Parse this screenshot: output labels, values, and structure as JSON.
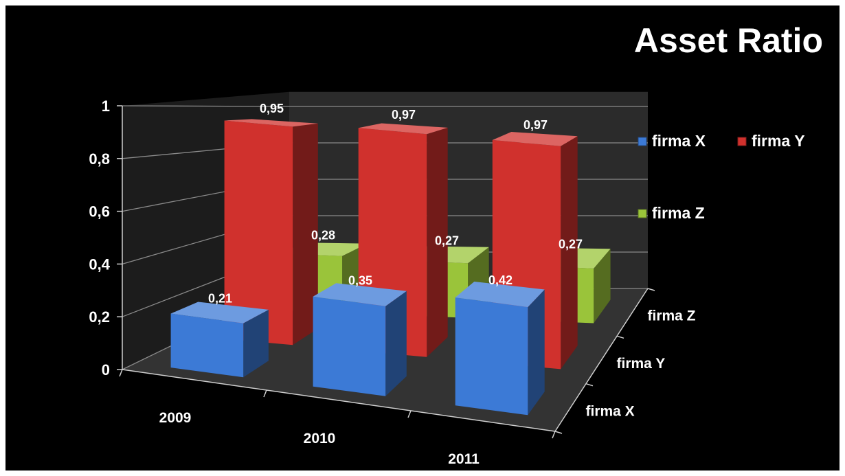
{
  "chart_data": {
    "type": "bar",
    "title": "Asset Ratio",
    "categories": [
      "2009",
      "2010",
      "2011"
    ],
    "series": [
      {
        "name": "firma X",
        "values": [
          0.21,
          0.35,
          0.42
        ],
        "labels": [
          "0,21",
          "0,35",
          "0,42"
        ],
        "color": "#3c7ad6"
      },
      {
        "name": "firma Y",
        "values": [
          0.95,
          0.97,
          0.97
        ],
        "labels": [
          "0,95",
          "0,97",
          "0,97"
        ],
        "color": "#d0312d"
      },
      {
        "name": "firma Z",
        "values": [
          0.28,
          0.27,
          0.27
        ],
        "labels": [
          "0,28",
          "0,27",
          "0,27"
        ],
        "color": "#9ac43a"
      }
    ],
    "y_ticks": [
      "0",
      "0,2",
      "0,4",
      "0,6",
      "0,8",
      "1"
    ],
    "depth_ticks": [
      "firma X",
      "firma Y",
      "firma Z"
    ],
    "ylim": [
      0,
      1
    ],
    "grid": true,
    "legend_position": "right",
    "projection": "3d-clustered-column"
  }
}
